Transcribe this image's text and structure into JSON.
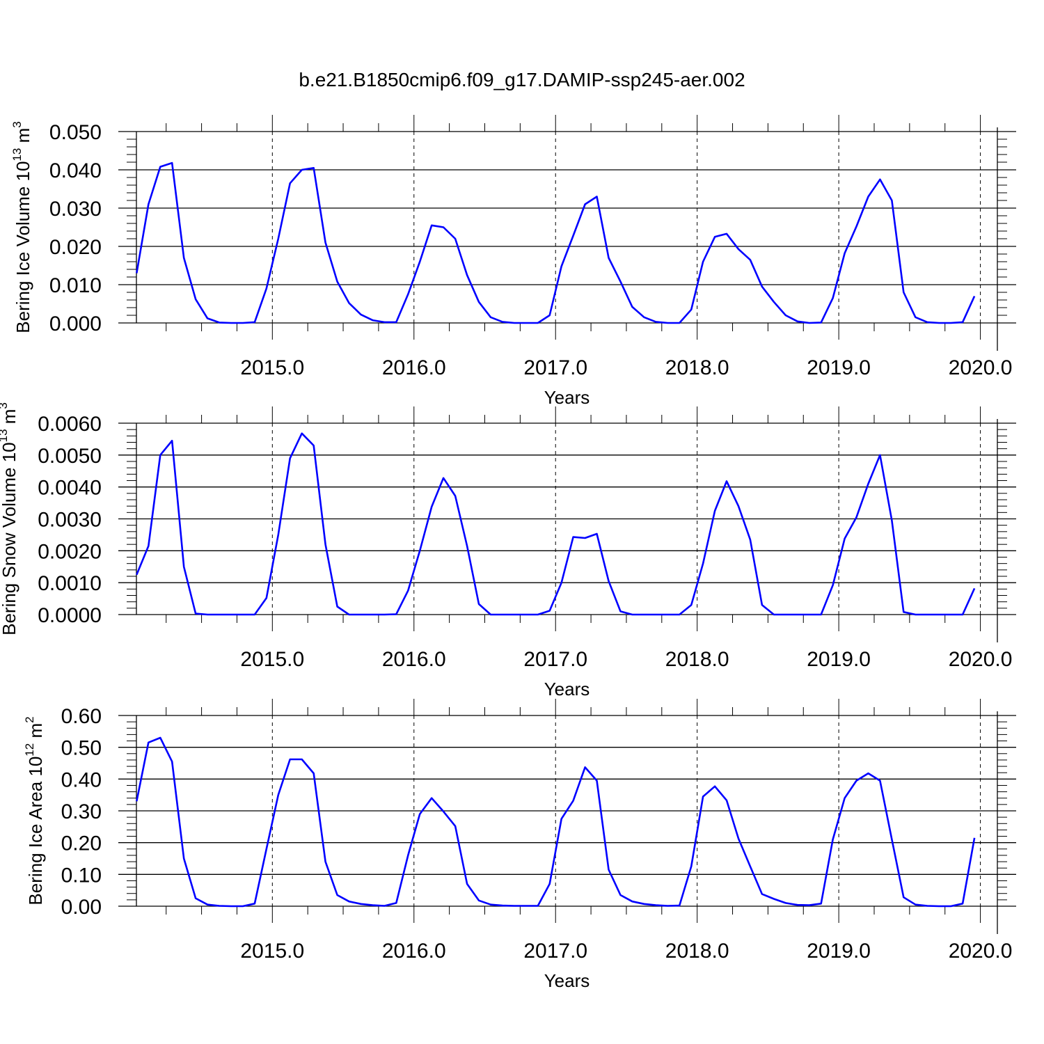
{
  "page": {
    "title": "b.e21.B1850cmip6.f09_g17.DAMIP-ssp245-aer.002"
  },
  "chart_data": [
    {
      "type": "line",
      "title": "b.e21.B1850cmip6.f09_g17.DAMIP-ssp245-aer.002",
      "xlabel": "Years",
      "ylabel": "Bering Ice Volume 10",
      "ylabel_exponent": "13",
      "ylabel_unit": "m",
      "ylabel_unit_exponent": "3",
      "xlim": [
        2014.04,
        2020.12
      ],
      "ylim": [
        0.0,
        0.05
      ],
      "x_ticks": [
        "2015.0",
        "2016.0",
        "2017.0",
        "2018.0",
        "2019.0",
        "2020.0"
      ],
      "y_ticks": [
        "0.000",
        "0.010",
        "0.020",
        "0.030",
        "0.040",
        "0.050"
      ],
      "line_color": "#0000ff",
      "grid": "vertical dashed at year boundaries",
      "series": [
        {
          "x_start": 2014.0417,
          "x_step": 0.08333,
          "values": [
            0.013,
            0.031,
            0.0408,
            0.0418,
            0.017,
            0.0062,
            0.0012,
            0.0001,
            0.0,
            0.0,
            0.0002,
            0.009,
            0.022,
            0.0365,
            0.04,
            0.0405,
            0.021,
            0.0108,
            0.0052,
            0.0022,
            0.0007,
            0.0002,
            0.0002,
            0.0075,
            0.016,
            0.0255,
            0.025,
            0.022,
            0.0125,
            0.0055,
            0.0015,
            0.0003,
            0.0,
            0.0,
            0.0,
            0.002,
            0.0148,
            0.0228,
            0.031,
            0.033,
            0.017,
            0.0108,
            0.0042,
            0.0015,
            0.0003,
            0.0,
            0.0,
            0.0035,
            0.016,
            0.0225,
            0.0233,
            0.0193,
            0.0165,
            0.0095,
            0.0055,
            0.002,
            0.0004,
            0.0,
            0.0001,
            0.0065,
            0.0182,
            0.0252,
            0.033,
            0.0375,
            0.032,
            0.008,
            0.0015,
            0.0002,
            0.0,
            0.0,
            0.0002,
            0.007
          ]
        }
      ]
    },
    {
      "type": "line",
      "xlabel": "Years",
      "ylabel": "Bering Snow Volume 10",
      "ylabel_exponent": "13",
      "ylabel_unit": "m",
      "ylabel_unit_exponent": "3",
      "xlim": [
        2014.04,
        2020.12
      ],
      "ylim": [
        0.0,
        0.006
      ],
      "x_ticks": [
        "2015.0",
        "2016.0",
        "2017.0",
        "2018.0",
        "2019.0",
        "2020.0"
      ],
      "y_ticks": [
        "0.0000",
        "0.0010",
        "0.0020",
        "0.0030",
        "0.0040",
        "0.0050",
        "0.0060"
      ],
      "line_color": "#0000ff",
      "grid": "vertical dashed at year boundaries",
      "series": [
        {
          "x_start": 2014.0417,
          "x_step": 0.08333,
          "values": [
            0.00125,
            0.00215,
            0.005,
            0.00545,
            0.0015,
            3e-05,
            0.0,
            0.0,
            0.0,
            0.0,
            0.0,
            0.00052,
            0.0025,
            0.0049,
            0.00568,
            0.0053,
            0.0022,
            0.00025,
            0.0,
            0.0,
            0.0,
            0.0,
            1e-05,
            0.00075,
            0.002,
            0.00338,
            0.00428,
            0.00372,
            0.00215,
            0.00033,
            0.0,
            0.0,
            0.0,
            0.0,
            0.0,
            0.00012,
            0.001,
            0.00243,
            0.0024,
            0.00253,
            0.00105,
            0.0001,
            0.0,
            0.0,
            0.0,
            0.0,
            0.0,
            0.0003,
            0.0016,
            0.00325,
            0.00418,
            0.0034,
            0.00235,
            0.0003,
            0.0,
            0.0,
            0.0,
            0.0,
            0.0,
            0.00092,
            0.00238,
            0.00305,
            0.0041,
            0.005,
            0.00295,
            8e-05,
            0.0,
            0.0,
            0.0,
            0.0,
            0.0,
            0.00082
          ]
        }
      ]
    },
    {
      "type": "line",
      "xlabel": "Years",
      "ylabel": "Bering Ice Area 10",
      "ylabel_exponent": "12",
      "ylabel_unit": "m",
      "ylabel_unit_exponent": "2",
      "xlim": [
        2014.04,
        2020.12
      ],
      "ylim": [
        0.0,
        0.6
      ],
      "x_ticks": [
        "2015.0",
        "2016.0",
        "2017.0",
        "2018.0",
        "2019.0",
        "2020.0"
      ],
      "y_ticks": [
        "0.00",
        "0.10",
        "0.20",
        "0.30",
        "0.40",
        "0.50",
        "0.60"
      ],
      "line_color": "#0000ff",
      "grid": "vertical dashed at year boundaries",
      "series": [
        {
          "x_start": 2014.0417,
          "x_step": 0.08333,
          "values": [
            0.33,
            0.515,
            0.53,
            0.455,
            0.15,
            0.025,
            0.005,
            0.001,
            0.0,
            0.0,
            0.008,
            0.18,
            0.35,
            0.462,
            0.462,
            0.418,
            0.14,
            0.035,
            0.015,
            0.007,
            0.003,
            0.001,
            0.01,
            0.16,
            0.29,
            0.34,
            0.298,
            0.252,
            0.07,
            0.018,
            0.005,
            0.002,
            0.001,
            0.001,
            0.001,
            0.07,
            0.275,
            0.332,
            0.437,
            0.395,
            0.115,
            0.035,
            0.015,
            0.007,
            0.003,
            0.001,
            0.002,
            0.125,
            0.345,
            0.377,
            0.333,
            0.213,
            0.125,
            0.038,
            0.023,
            0.01,
            0.004,
            0.003,
            0.008,
            0.21,
            0.34,
            0.395,
            0.418,
            0.395,
            0.21,
            0.028,
            0.005,
            0.001,
            0.0,
            0.0,
            0.008,
            0.215
          ]
        }
      ]
    }
  ]
}
